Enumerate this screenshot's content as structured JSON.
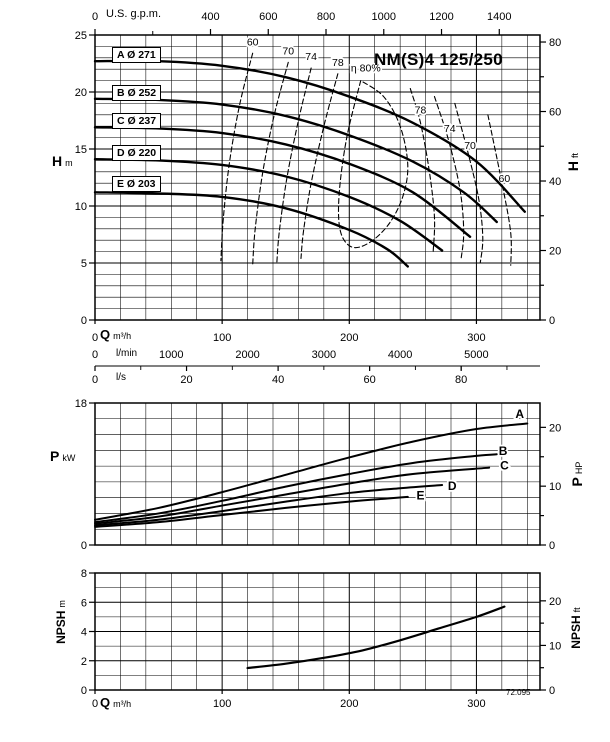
{
  "title": "NM(S)4 125/250",
  "drawing_number": "72.095",
  "colors": {
    "ink": "#000000",
    "grid": "#444444",
    "background": "#ffffff"
  },
  "labels": {
    "us_gpm": "U.S. g.p.m.",
    "q": "Q",
    "q_unit": "m³/h",
    "lmin": "l/min",
    "ls": "l/s",
    "h": "H",
    "h_unit": "m",
    "h_ft": "H",
    "h_ft_unit": "ft",
    "p": "P",
    "p_unit": "kW",
    "p_hp": "P",
    "p_hp_unit": "HP",
    "npsh": "NPSH",
    "npsh_unit_m": "m",
    "npsh_unit_ft": "ft"
  },
  "chart_data": [
    {
      "id": "head-flow",
      "type": "line",
      "title": "NM(S)4 125/250",
      "xlabel": "Q",
      "x_units": [
        "m³/h",
        "l/min",
        "l/s",
        "U.S. g.p.m."
      ],
      "ylabel_left": "H m",
      "ylabel_right": "H ft",
      "x_range_m3h": [
        0,
        350
      ],
      "y_range_m": [
        0,
        25
      ],
      "grid": "on",
      "x_ticks_m3h": [
        0,
        100,
        200,
        300
      ],
      "x_ticks_lmin": [
        0,
        1000,
        2000,
        3000,
        4000,
        5000
      ],
      "x_ticks_ls": [
        0,
        20,
        40,
        60,
        80
      ],
      "x_ticks_usgpm": [
        0,
        400,
        600,
        800,
        1000,
        1200,
        1400
      ],
      "y_ticks_m": [
        0,
        5,
        10,
        15,
        20,
        25
      ],
      "y_ticks_ft": [
        0,
        20,
        40,
        60,
        80
      ],
      "series": [
        {
          "name": "A",
          "impeller_diameter": "Ø 271",
          "box_label": "A Ø 271",
          "points_q_h": [
            [
              0,
              22.7
            ],
            [
              50,
              22.7
            ],
            [
              100,
              22.3
            ],
            [
              150,
              21.3
            ],
            [
              200,
              19.6
            ],
            [
              250,
              17.3
            ],
            [
              300,
              13.9
            ],
            [
              338,
              9.5
            ]
          ]
        },
        {
          "name": "B",
          "impeller_diameter": "Ø 252",
          "box_label": "B Ø 252",
          "points_q_h": [
            [
              0,
              19.4
            ],
            [
              50,
              19.3
            ],
            [
              100,
              18.9
            ],
            [
              150,
              17.9
            ],
            [
              200,
              16.2
            ],
            [
              250,
              13.9
            ],
            [
              290,
              11.2
            ],
            [
              316,
              8.6
            ]
          ]
        },
        {
          "name": "C",
          "impeller_diameter": "Ø 237",
          "box_label": "C Ø 237",
          "points_q_h": [
            [
              0,
              16.9
            ],
            [
              50,
              16.8
            ],
            [
              100,
              16.4
            ],
            [
              150,
              15.4
            ],
            [
              200,
              13.7
            ],
            [
              250,
              11.2
            ],
            [
              295,
              7.3
            ]
          ]
        },
        {
          "name": "D",
          "impeller_diameter": "Ø 220",
          "box_label": "D Ø 220",
          "points_q_h": [
            [
              0,
              14.1
            ],
            [
              50,
              14.0
            ],
            [
              100,
              13.6
            ],
            [
              150,
              12.6
            ],
            [
              200,
              10.8
            ],
            [
              240,
              8.7
            ],
            [
              273,
              6.1
            ]
          ]
        },
        {
          "name": "E",
          "impeller_diameter": "Ø 203",
          "box_label": "E Ø 203",
          "points_q_h": [
            [
              0,
              11.2
            ],
            [
              50,
              11.1
            ],
            [
              100,
              10.8
            ],
            [
              150,
              9.8
            ],
            [
              200,
              7.9
            ],
            [
              230,
              6.2
            ],
            [
              246,
              4.7
            ]
          ]
        }
      ],
      "efficiency_contours": [
        {
          "label": "60",
          "side": "left",
          "label_q_h": [
            124,
            24.1
          ],
          "points_q_h": [
            [
              124,
              23.4
            ],
            [
              114,
              19
            ],
            [
              106,
              14
            ],
            [
              101,
              9
            ],
            [
              99,
              5.2
            ]
          ]
        },
        {
          "label": "70",
          "side": "left",
          "label_q_h": [
            152,
            23.3
          ],
          "points_q_h": [
            [
              152,
              22.6
            ],
            [
              141,
              18
            ],
            [
              132,
              13
            ],
            [
              126,
              8
            ],
            [
              124,
              4.8
            ]
          ]
        },
        {
          "label": "74",
          "side": "left",
          "label_q_h": [
            170,
            22.8
          ],
          "points_q_h": [
            [
              170,
              22.1
            ],
            [
              160,
              17.5
            ],
            [
              151,
              12.5
            ],
            [
              145,
              7.8
            ],
            [
              143,
              5.0
            ]
          ]
        },
        {
          "label": "78",
          "side": "left",
          "label_q_h": [
            191,
            22.3
          ],
          "points_q_h": [
            [
              191,
              21.6
            ],
            [
              180,
              17.0
            ],
            [
              170,
              12.0
            ],
            [
              164,
              7.8
            ],
            [
              162,
              5.4
            ]
          ]
        },
        {
          "label": "η 80%",
          "side": "center",
          "label_q_h": [
            213,
            21.8
          ],
          "points_q_h": [
            [
              209,
              21.0
            ],
            [
              198,
              16.0
            ],
            [
              192,
              11.0
            ],
            [
              193,
              7.8
            ],
            [
              202,
              6.4
            ],
            [
              216,
              6.8
            ],
            [
              231,
              8.4
            ],
            [
              242,
              10.8
            ],
            [
              246,
              13.6
            ],
            [
              240,
              17.0
            ],
            [
              227,
              19.6
            ],
            [
              209,
              21.0
            ]
          ]
        },
        {
          "label": "78",
          "side": "right",
          "label_q_h": [
            256,
            18.1
          ],
          "points_q_h": [
            [
              248,
              20.3
            ],
            [
              256,
              17.3
            ],
            [
              263,
              13.0
            ],
            [
              267,
              9.0
            ],
            [
              266,
              6.0
            ]
          ]
        },
        {
          "label": "74",
          "side": "right",
          "label_q_h": [
            279,
            16.5
          ],
          "points_q_h": [
            [
              267,
              19.6
            ],
            [
              278,
              15.8
            ],
            [
              287,
              11.5
            ],
            [
              290,
              7.8
            ],
            [
              288,
              5.4
            ]
          ]
        },
        {
          "label": "70",
          "side": "right",
          "label_q_h": [
            295,
            15.0
          ],
          "points_q_h": [
            [
              283,
              19.0
            ],
            [
              294,
              14.4
            ],
            [
              302,
              10.5
            ],
            [
              305,
              7.2
            ],
            [
              303,
              5.0
            ]
          ]
        },
        {
          "label": "60",
          "side": "right",
          "label_q_h": [
            322,
            12.1
          ],
          "points_q_h": [
            [
              309,
              18.0
            ],
            [
              321,
              11.5
            ],
            [
              327,
              7.6
            ],
            [
              327,
              4.8
            ]
          ]
        }
      ]
    },
    {
      "id": "power-flow",
      "type": "line",
      "ylabel_left": "P kW",
      "ylabel_right": "P HP",
      "y_range_kw": [
        0,
        18
      ],
      "grid": "on",
      "y_ticks_kw": [
        0,
        18
      ],
      "y_ticks_hp": [
        0,
        10,
        20
      ],
      "series": [
        {
          "name": "A",
          "label_q_p": [
            334,
            16.6
          ],
          "points_q_p": [
            [
              0,
              3.2
            ],
            [
              50,
              4.7
            ],
            [
              100,
              6.7
            ],
            [
              150,
              8.9
            ],
            [
              200,
              11.1
            ],
            [
              250,
              13.1
            ],
            [
              300,
              14.7
            ],
            [
              340,
              15.4
            ]
          ]
        },
        {
          "name": "B",
          "label_q_p": [
            321,
            11.9
          ],
          "points_q_p": [
            [
              0,
              2.9
            ],
            [
              50,
              4.0
            ],
            [
              100,
              5.6
            ],
            [
              150,
              7.4
            ],
            [
              200,
              9.0
            ],
            [
              250,
              10.4
            ],
            [
              300,
              11.3
            ],
            [
              316,
              11.5
            ]
          ]
        },
        {
          "name": "C",
          "label_q_p": [
            322,
            10.1
          ],
          "points_q_p": [
            [
              0,
              2.7
            ],
            [
              50,
              3.6
            ],
            [
              100,
              5.0
            ],
            [
              150,
              6.4
            ],
            [
              200,
              7.8
            ],
            [
              250,
              9.0
            ],
            [
              310,
              9.8
            ]
          ]
        },
        {
          "name": "D",
          "label_q_p": [
            281,
            7.5
          ],
          "points_q_p": [
            [
              0,
              2.5
            ],
            [
              50,
              3.2
            ],
            [
              100,
              4.3
            ],
            [
              150,
              5.5
            ],
            [
              200,
              6.6
            ],
            [
              240,
              7.2
            ],
            [
              273,
              7.6
            ]
          ]
        },
        {
          "name": "E",
          "label_q_p": [
            256,
            6.3
          ],
          "points_q_p": [
            [
              0,
              2.3
            ],
            [
              50,
              2.9
            ],
            [
              100,
              3.8
            ],
            [
              150,
              4.7
            ],
            [
              200,
              5.5
            ],
            [
              230,
              5.9
            ],
            [
              246,
              6.1
            ]
          ]
        }
      ]
    },
    {
      "id": "npsh-flow",
      "type": "line",
      "ylabel_left": "NPSH m",
      "ylabel_right": "NPSH ft",
      "y_range_m": [
        0,
        8
      ],
      "grid": "on",
      "x_ticks_m3h": [
        0,
        100,
        200,
        300
      ],
      "y_ticks_m": [
        0,
        2,
        4,
        6,
        8
      ],
      "y_ticks_ft": [
        0,
        10,
        20
      ],
      "series": [
        {
          "name": "NPSH",
          "points_q_npsh": [
            [
              120,
              1.5
            ],
            [
              150,
              1.8
            ],
            [
              180,
              2.2
            ],
            [
              210,
              2.7
            ],
            [
              240,
              3.4
            ],
            [
              270,
              4.2
            ],
            [
              300,
              5.0
            ],
            [
              322,
              5.7
            ]
          ]
        }
      ]
    }
  ]
}
